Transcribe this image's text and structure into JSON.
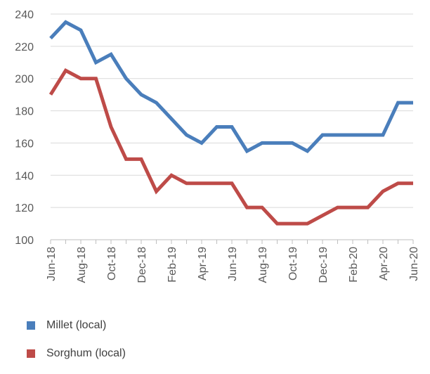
{
  "chart_data": {
    "type": "line",
    "title": "",
    "xlabel": "",
    "ylabel": "",
    "ylim": [
      100,
      240
    ],
    "yticks": [
      100,
      120,
      140,
      160,
      180,
      200,
      220,
      240
    ],
    "grid": "horizontal",
    "legend_placement": "bottom-left",
    "categories": [
      "Jun-18",
      "Jul-18",
      "Aug-18",
      "Sep-18",
      "Oct-18",
      "Nov-18",
      "Dec-18",
      "Jan-19",
      "Feb-19",
      "Mar-19",
      "Apr-19",
      "May-19",
      "Jun-19",
      "Jul-19",
      "Aug-19",
      "Sep-19",
      "Oct-19",
      "Nov-19",
      "Dec-19",
      "Jan-20",
      "Feb-20",
      "Mar-20",
      "Apr-20",
      "May-20",
      "Jun-20"
    ],
    "tick_labels": [
      "Jun-18",
      "Aug-18",
      "Oct-18",
      "Dec-18",
      "Feb-19",
      "Apr-19",
      "Jun-19",
      "Aug-19",
      "Oct-19",
      "Dec-19",
      "Feb-20",
      "Apr-20",
      "Jun-20"
    ],
    "series": [
      {
        "name": "Millet (local)",
        "color": "#4a7ebb",
        "values": [
          225,
          235,
          230,
          210,
          215,
          200,
          190,
          185,
          175,
          165,
          160,
          170,
          170,
          155,
          160,
          160,
          160,
          155,
          165,
          165,
          165,
          165,
          165,
          185,
          185
        ]
      },
      {
        "name": "Sorghum (local)",
        "color": "#be4b48",
        "values": [
          190,
          205,
          200,
          200,
          170,
          150,
          150,
          130,
          140,
          135,
          135,
          135,
          135,
          120,
          120,
          110,
          110,
          110,
          115,
          120,
          120,
          120,
          130,
          135,
          135
        ]
      }
    ]
  }
}
